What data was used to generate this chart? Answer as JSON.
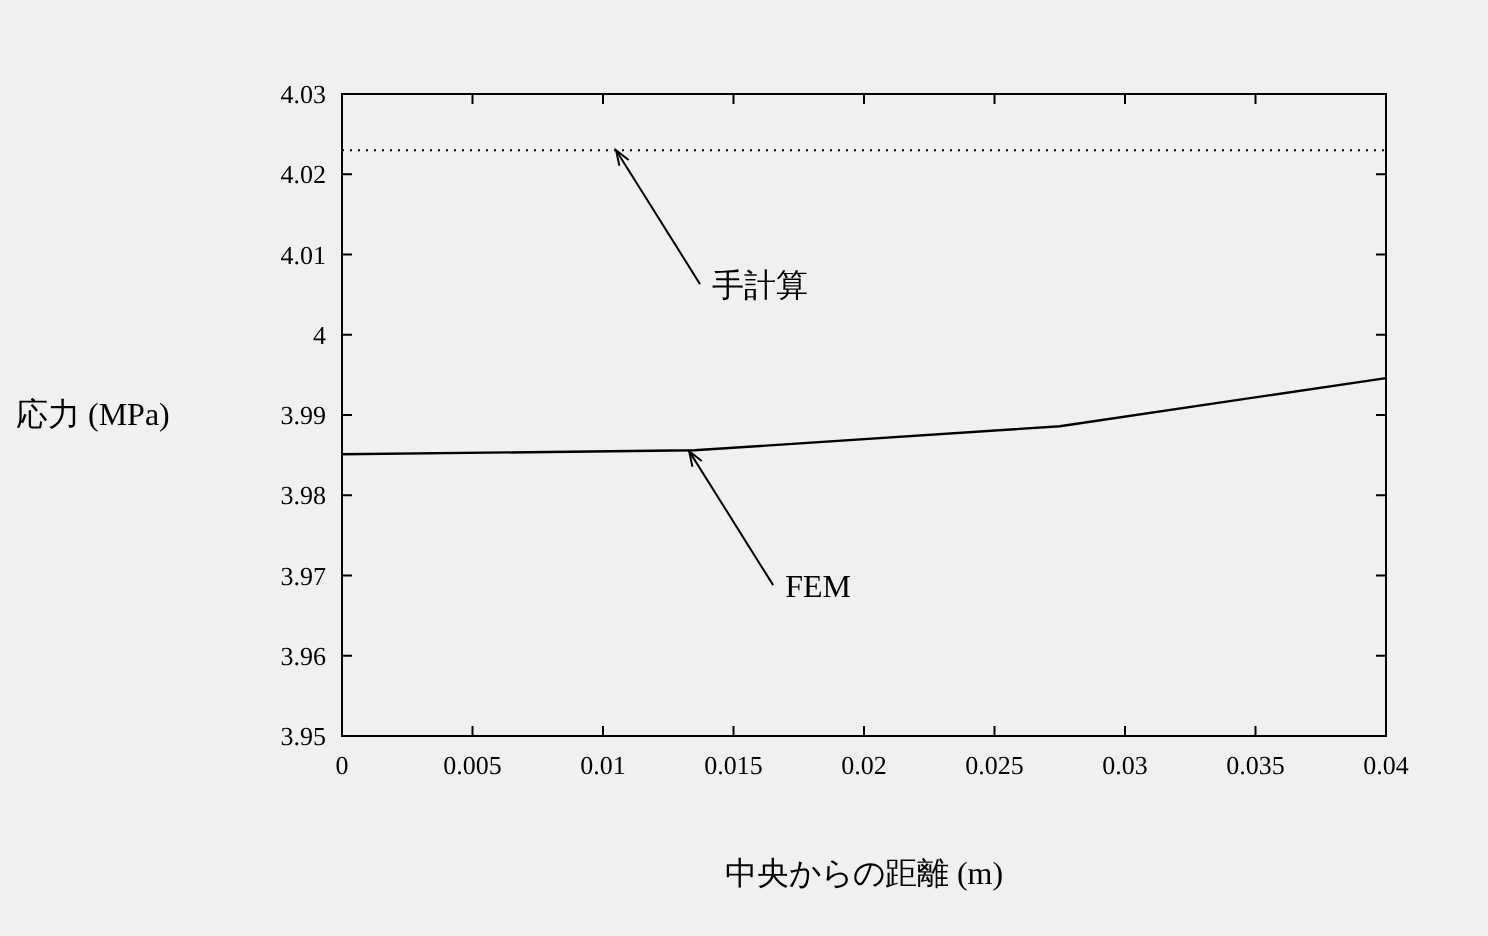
{
  "chart_data": {
    "type": "line",
    "xlabel": "中央からの距離 (m)",
    "ylabel": "応力 (MPa)",
    "x": [
      0,
      0.0135,
      0.0275,
      0.04
    ],
    "series": [
      {
        "color": "#000000",
        "values": [
          3.9851,
          3.9856,
          3.9886,
          3.9946
        ]
      }
    ],
    "xlim": [
      0,
      0.04
    ],
    "xticks": [
      0,
      0.005,
      0.01,
      0.015,
      0.02,
      0.025,
      0.03,
      0.035,
      0.04
    ],
    "ylim": [
      3.95,
      4.03
    ],
    "yticks": [
      3.95,
      3.96,
      3.97,
      3.98,
      3.99,
      4,
      4.01,
      4.02,
      4.03
    ],
    "ref_lines": [
      {
        "axis": "y",
        "value": 4.023,
        "color": "#000000",
        "line_style": "dotted"
      }
    ],
    "annotations": [
      {
        "text": "手計算",
        "x": 0.0105,
        "y": 4.023
      },
      {
        "text": "FEM",
        "x": 0.0133,
        "y": 3.9855
      }
    ],
    "grid": false,
    "marker": "none",
    "line_style": "solid"
  }
}
